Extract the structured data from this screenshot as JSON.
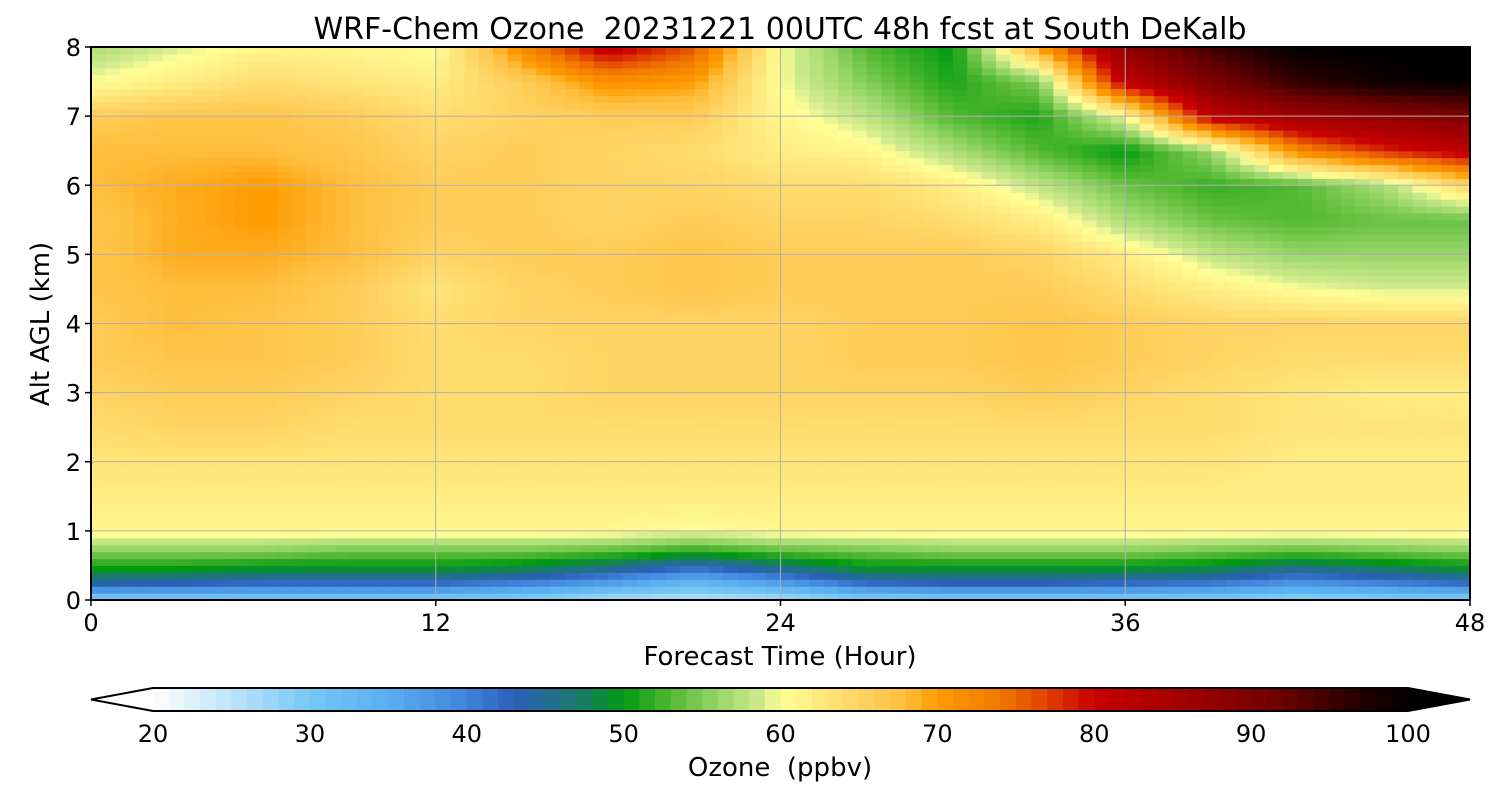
{
  "chart_data": {
    "type": "heatmap",
    "title": "WRF-Chem Ozone  20231221 00UTC 48h fcst at South DeKalb",
    "xlabel": "Forecast Time (Hour)",
    "ylabel": "Alt AGL (km)",
    "xlim": [
      0,
      48
    ],
    "ylim": [
      0,
      8
    ],
    "x_ticks": [
      0,
      12,
      24,
      36,
      48
    ],
    "y_ticks": [
      0,
      1,
      2,
      3,
      4,
      5,
      6,
      7,
      8
    ],
    "grid": true,
    "x": [
      0,
      3,
      6,
      9,
      12,
      15,
      18,
      21,
      24,
      27,
      30,
      33,
      36,
      39,
      42,
      45,
      48
    ],
    "y": [
      0,
      0.1,
      0.25,
      0.45,
      0.7,
      1,
      1.5,
      2,
      2.5,
      3,
      3.5,
      4,
      4.5,
      5,
      5.5,
      6,
      6.5,
      7,
      7.5,
      8
    ],
    "z": [
      [
        28,
        28,
        28,
        28,
        28,
        28,
        26,
        25,
        26,
        28,
        28,
        28,
        28,
        28,
        27,
        28,
        28
      ],
      [
        35,
        35,
        35,
        35,
        35,
        33,
        30,
        28,
        30,
        34,
        35,
        35,
        35,
        34,
        32,
        33,
        34
      ],
      [
        44,
        43,
        42,
        42,
        42,
        40,
        37,
        33,
        37,
        42,
        43,
        43,
        42,
        41,
        38,
        40,
        42
      ],
      [
        50,
        50,
        49,
        49,
        49,
        48,
        45,
        41,
        45,
        49,
        49,
        49,
        49,
        48,
        45,
        47,
        49
      ],
      [
        55,
        55,
        55,
        54,
        54,
        54,
        53,
        51,
        53,
        54,
        55,
        55,
        55,
        54,
        53,
        54,
        55
      ],
      [
        61,
        61,
        61,
        61,
        61,
        61,
        61,
        60,
        61,
        61,
        61,
        61,
        61,
        61,
        61,
        61,
        61
      ],
      [
        62,
        62,
        62,
        62,
        62,
        62,
        62,
        62,
        62,
        62,
        62,
        62,
        62,
        62,
        62,
        62,
        62
      ],
      [
        63,
        63,
        63,
        63,
        63,
        63,
        63,
        63,
        63,
        63,
        63,
        63,
        63,
        63,
        62,
        62,
        62
      ],
      [
        64,
        65,
        65,
        64,
        64,
        64,
        64,
        64,
        64,
        64,
        64,
        64,
        64,
        64,
        63,
        63,
        63
      ],
      [
        65,
        66,
        66,
        65,
        64,
        64,
        65,
        65,
        65,
        65,
        65,
        66,
        65,
        64,
        63,
        62,
        62
      ],
      [
        66,
        67,
        67,
        66,
        64,
        64,
        65,
        65,
        65,
        66,
        66,
        67,
        66,
        65,
        64,
        64,
        64
      ],
      [
        66,
        68,
        67,
        66,
        64,
        65,
        65,
        65,
        65,
        66,
        66,
        67,
        66,
        65,
        65,
        65,
        65
      ],
      [
        67,
        68,
        68,
        66,
        63,
        65,
        66,
        67,
        66,
        66,
        66,
        66,
        64,
        62,
        60,
        59,
        59
      ],
      [
        67,
        69,
        69,
        68,
        65,
        66,
        66,
        67,
        66,
        66,
        66,
        65,
        62,
        58,
        56,
        56,
        56
      ],
      [
        67,
        69,
        70,
        68,
        66,
        66,
        65,
        66,
        65,
        65,
        64,
        62,
        57,
        54,
        53,
        54,
        54
      ],
      [
        68,
        69,
        70,
        68,
        66,
        66,
        65,
        65,
        64,
        64,
        62,
        58,
        54,
        52,
        53,
        57,
        65
      ],
      [
        68,
        68,
        68,
        67,
        65,
        66,
        65,
        64,
        62,
        61,
        57,
        53,
        50,
        56,
        72,
        78,
        82
      ],
      [
        66,
        67,
        67,
        66,
        64,
        65,
        66,
        66,
        61,
        58,
        53,
        51,
        60,
        82,
        86,
        88,
        90
      ],
      [
        60,
        62,
        64,
        63,
        62,
        66,
        71,
        70,
        60,
        55,
        51,
        55,
        82,
        90,
        96,
        99,
        100
      ],
      [
        57,
        59,
        61,
        61,
        60,
        72,
        82,
        76,
        60,
        53,
        50,
        70,
        88,
        95,
        100,
        100,
        100
      ]
    ],
    "colorbar": {
      "label": "Ozone  (ppbv)",
      "min": 20,
      "max": 100,
      "ticks": [
        20,
        30,
        40,
        50,
        60,
        70,
        80,
        90,
        100
      ],
      "extend": "both",
      "orientation": "horizontal",
      "placement": "bottom",
      "color_stops": [
        [
          20,
          "#ffffff"
        ],
        [
          25,
          "#bde4f8"
        ],
        [
          30,
          "#76c7f5"
        ],
        [
          35,
          "#5aaef0"
        ],
        [
          40,
          "#3f84db"
        ],
        [
          43,
          "#2c5fb8"
        ],
        [
          47,
          "#1c7a70"
        ],
        [
          50,
          "#009a10"
        ],
        [
          53,
          "#52b832"
        ],
        [
          56,
          "#98d668"
        ],
        [
          59,
          "#d4ec8e"
        ],
        [
          60,
          "#ffff96"
        ],
        [
          62,
          "#ffed82"
        ],
        [
          65,
          "#ffd464"
        ],
        [
          68,
          "#ffbe3c"
        ],
        [
          70,
          "#ff9a00"
        ],
        [
          74,
          "#f07800"
        ],
        [
          77,
          "#e04000"
        ],
        [
          80,
          "#c80000"
        ],
        [
          86,
          "#a00000"
        ],
        [
          92,
          "#6a0000"
        ],
        [
          96,
          "#300000"
        ],
        [
          100,
          "#000000"
        ]
      ]
    }
  }
}
